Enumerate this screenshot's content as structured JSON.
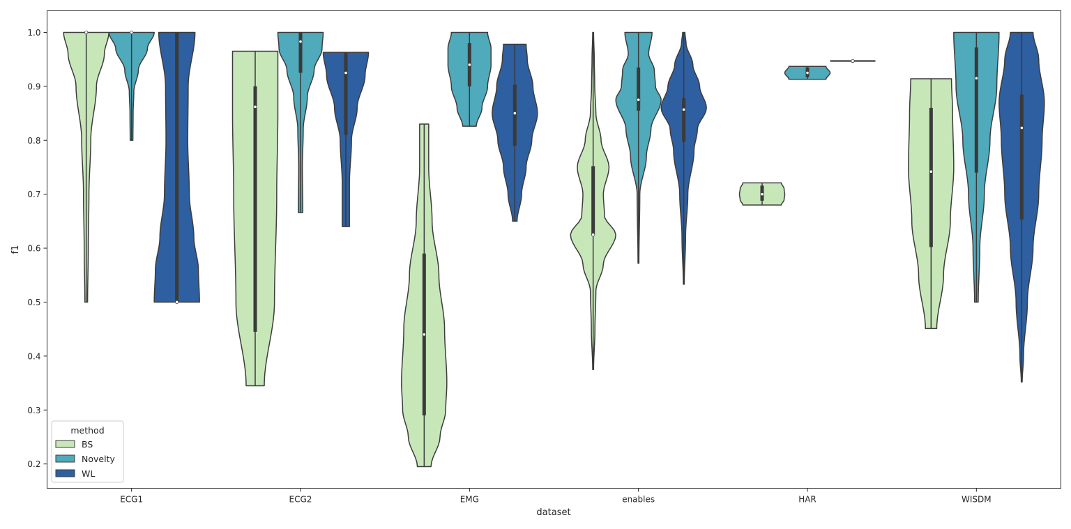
{
  "chart_data": {
    "type": "violin",
    "xlabel": "dataset",
    "ylabel": "f1",
    "ylim": [
      0.155,
      1.04
    ],
    "yticks": [
      0.2,
      0.3,
      0.4,
      0.5,
      0.6,
      0.7,
      0.8,
      0.9,
      1.0
    ],
    "grid": false,
    "categories": [
      "ECG1",
      "ECG2",
      "EMG",
      "enables",
      "HAR",
      "WISDM"
    ],
    "legend": {
      "title": "method",
      "position": "lower-left",
      "entries": [
        {
          "label": "BS",
          "color": "#c7e7b9"
        },
        {
          "label": "Novelty",
          "color": "#4faabb"
        },
        {
          "label": "WL",
          "color": "#2e5fa0"
        }
      ]
    },
    "colors": {
      "BS": "#c7e7b9",
      "Novelty": "#4faabb",
      "WL": "#2e5fa0",
      "edge": "#3c3c3c",
      "box": "#3a3a3a"
    },
    "violins": [
      {
        "category": "ECG1",
        "method": "BS",
        "min": 0.5,
        "max": 1.0,
        "q1": 1.0,
        "median": 1.0,
        "q3": 1.0,
        "profile": [
          [
            0.5,
            0.06
          ],
          [
            0.6,
            0.09
          ],
          [
            0.7,
            0.12
          ],
          [
            0.8,
            0.2
          ],
          [
            0.9,
            0.45
          ],
          [
            0.96,
            0.8
          ],
          [
            1.0,
            1.0
          ]
        ]
      },
      {
        "category": "ECG1",
        "method": "Novelty",
        "min": 0.8,
        "max": 1.0,
        "q1": 1.0,
        "median": 1.0,
        "q3": 1.0,
        "profile": [
          [
            0.8,
            0.06
          ],
          [
            0.85,
            0.07
          ],
          [
            0.89,
            0.1
          ],
          [
            0.93,
            0.3
          ],
          [
            0.97,
            0.7
          ],
          [
            1.0,
            1.0
          ]
        ]
      },
      {
        "category": "ECG1",
        "method": "WL",
        "min": 0.5,
        "max": 1.0,
        "q1": 0.5,
        "median": 0.5,
        "q3": 1.0,
        "profile": [
          [
            0.5,
            1.0
          ],
          [
            0.56,
            0.95
          ],
          [
            0.62,
            0.75
          ],
          [
            0.7,
            0.55
          ],
          [
            0.8,
            0.48
          ],
          [
            0.9,
            0.5
          ],
          [
            1.0,
            0.8
          ]
        ]
      },
      {
        "category": "ECG2",
        "method": "BS",
        "min": 0.345,
        "max": 0.965,
        "q1": 0.445,
        "median": 0.862,
        "q3": 0.9,
        "profile": [
          [
            0.345,
            0.4
          ],
          [
            0.5,
            0.85
          ],
          [
            0.7,
            0.95
          ],
          [
            0.85,
            1.0
          ],
          [
            0.965,
            1.0
          ]
        ]
      },
      {
        "category": "ECG2",
        "method": "Novelty",
        "min": 0.666,
        "max": 1.0,
        "q1": 0.925,
        "median": 0.983,
        "q3": 1.0,
        "profile": [
          [
            0.666,
            0.1
          ],
          [
            0.75,
            0.08
          ],
          [
            0.82,
            0.12
          ],
          [
            0.88,
            0.3
          ],
          [
            0.93,
            0.6
          ],
          [
            0.97,
            0.95
          ],
          [
            1.0,
            1.0
          ]
        ]
      },
      {
        "category": "ECG2",
        "method": "WL",
        "min": 0.64,
        "max": 0.963,
        "q1": 0.81,
        "median": 0.925,
        "q3": 0.963,
        "profile": [
          [
            0.64,
            0.16
          ],
          [
            0.72,
            0.16
          ],
          [
            0.8,
            0.25
          ],
          [
            0.86,
            0.5
          ],
          [
            0.92,
            0.85
          ],
          [
            0.963,
            1.0
          ]
        ]
      },
      {
        "category": "EMG",
        "method": "BS",
        "min": 0.195,
        "max": 0.83,
        "q1": 0.29,
        "median": 0.44,
        "q3": 0.59,
        "profile": [
          [
            0.195,
            0.3
          ],
          [
            0.25,
            0.7
          ],
          [
            0.3,
            0.95
          ],
          [
            0.35,
            1.0
          ],
          [
            0.45,
            0.9
          ],
          [
            0.55,
            0.65
          ],
          [
            0.65,
            0.35
          ],
          [
            0.75,
            0.2
          ],
          [
            0.83,
            0.2
          ]
        ]
      },
      {
        "category": "EMG",
        "method": "Novelty",
        "min": 0.826,
        "max": 1.0,
        "q1": 0.9,
        "median": 0.94,
        "q3": 0.98,
        "profile": [
          [
            0.826,
            0.3
          ],
          [
            0.86,
            0.55
          ],
          [
            0.9,
            0.8
          ],
          [
            0.94,
            0.95
          ],
          [
            0.97,
            0.95
          ],
          [
            1.0,
            0.8
          ]
        ]
      },
      {
        "category": "EMG",
        "method": "WL",
        "min": 0.65,
        "max": 0.978,
        "q1": 0.79,
        "median": 0.85,
        "q3": 0.903,
        "profile": [
          [
            0.65,
            0.1
          ],
          [
            0.7,
            0.3
          ],
          [
            0.75,
            0.5
          ],
          [
            0.8,
            0.75
          ],
          [
            0.85,
            1.0
          ],
          [
            0.9,
            0.8
          ],
          [
            0.95,
            0.55
          ],
          [
            0.978,
            0.5
          ]
        ]
      },
      {
        "category": "enables",
        "method": "BS",
        "min": 0.375,
        "max": 1.0,
        "q1": 0.625,
        "median": 0.625,
        "q3": 0.752,
        "profile": [
          [
            0.375,
            0.02
          ],
          [
            0.45,
            0.08
          ],
          [
            0.52,
            0.12
          ],
          [
            0.57,
            0.45
          ],
          [
            0.625,
            1.0
          ],
          [
            0.66,
            0.5
          ],
          [
            0.7,
            0.45
          ],
          [
            0.75,
            0.7
          ],
          [
            0.8,
            0.35
          ],
          [
            0.85,
            0.12
          ],
          [
            0.9,
            0.07
          ],
          [
            0.95,
            0.05
          ],
          [
            1.0,
            0.02
          ]
        ]
      },
      {
        "category": "enables",
        "method": "Novelty",
        "min": 0.572,
        "max": 1.0,
        "q1": 0.855,
        "median": 0.875,
        "q3": 0.935,
        "profile": [
          [
            0.572,
            0.02
          ],
          [
            0.7,
            0.06
          ],
          [
            0.77,
            0.35
          ],
          [
            0.82,
            0.55
          ],
          [
            0.875,
            1.0
          ],
          [
            0.9,
            0.75
          ],
          [
            0.93,
            0.7
          ],
          [
            0.96,
            0.45
          ],
          [
            1.0,
            0.6
          ]
        ]
      },
      {
        "category": "enables",
        "method": "WL",
        "min": 0.533,
        "max": 1.0,
        "q1": 0.797,
        "median": 0.857,
        "q3": 0.878,
        "profile": [
          [
            0.533,
            0.02
          ],
          [
            0.62,
            0.08
          ],
          [
            0.7,
            0.18
          ],
          [
            0.78,
            0.45
          ],
          [
            0.82,
            0.6
          ],
          [
            0.86,
            1.0
          ],
          [
            0.9,
            0.7
          ],
          [
            0.94,
            0.4
          ],
          [
            0.98,
            0.1
          ],
          [
            1.0,
            0.05
          ]
        ]
      },
      {
        "category": "HAR",
        "method": "BS",
        "min": 0.68,
        "max": 0.721,
        "q1": 0.688,
        "median": 0.7,
        "q3": 0.716,
        "profile": [
          [
            0.68,
            0.85
          ],
          [
            0.69,
            0.97
          ],
          [
            0.7,
            1.0
          ],
          [
            0.71,
            0.97
          ],
          [
            0.721,
            0.85
          ]
        ]
      },
      {
        "category": "HAR",
        "method": "Novelty",
        "min": 0.913,
        "max": 0.937,
        "q1": 0.917,
        "median": 0.925,
        "q3": 0.935,
        "profile": [
          [
            0.913,
            0.82
          ],
          [
            0.925,
            1.0
          ],
          [
            0.937,
            0.82
          ]
        ]
      },
      {
        "category": "HAR",
        "method": "WL",
        "min": 0.947,
        "max": 0.947,
        "q1": 0.947,
        "median": 0.947,
        "q3": 0.947,
        "profile": [
          [
            0.947,
            1.0
          ]
        ]
      },
      {
        "category": "WISDM",
        "method": "BS",
        "min": 0.451,
        "max": 0.914,
        "q1": 0.602,
        "median": 0.742,
        "q3": 0.86,
        "profile": [
          [
            0.451,
            0.25
          ],
          [
            0.55,
            0.55
          ],
          [
            0.65,
            0.85
          ],
          [
            0.75,
            1.0
          ],
          [
            0.85,
            0.95
          ],
          [
            0.914,
            0.9
          ]
        ]
      },
      {
        "category": "WISDM",
        "method": "Novelty",
        "min": 0.5,
        "max": 1.0,
        "q1": 0.74,
        "median": 0.915,
        "q3": 0.972,
        "profile": [
          [
            0.5,
            0.08
          ],
          [
            0.6,
            0.15
          ],
          [
            0.7,
            0.35
          ],
          [
            0.8,
            0.6
          ],
          [
            0.9,
            0.9
          ],
          [
            1.0,
            1.0
          ]
        ]
      },
      {
        "category": "WISDM",
        "method": "WL",
        "min": 0.352,
        "max": 1.0,
        "q1": 0.653,
        "median": 0.823,
        "q3": 0.885,
        "profile": [
          [
            0.352,
            0.02
          ],
          [
            0.4,
            0.08
          ],
          [
            0.5,
            0.25
          ],
          [
            0.6,
            0.5
          ],
          [
            0.7,
            0.75
          ],
          [
            0.8,
            0.9
          ],
          [
            0.87,
            1.0
          ],
          [
            0.95,
            0.75
          ],
          [
            1.0,
            0.5
          ]
        ]
      }
    ]
  }
}
